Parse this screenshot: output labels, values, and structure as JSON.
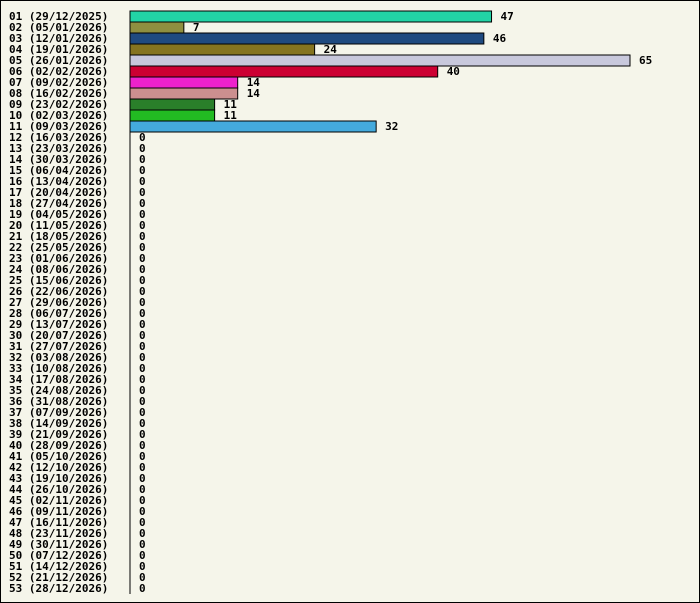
{
  "chart_data": {
    "type": "bar",
    "orientation": "horizontal",
    "categories": [
      "01 (29/12/2025)",
      "02 (05/01/2026)",
      "03 (12/01/2026)",
      "04 (19/01/2026)",
      "05 (26/01/2026)",
      "06 (02/02/2026)",
      "07 (09/02/2026)",
      "08 (16/02/2026)",
      "09 (23/02/2026)",
      "10 (02/03/2026)",
      "11 (09/03/2026)",
      "12 (16/03/2026)",
      "13 (23/03/2026)",
      "14 (30/03/2026)",
      "15 (06/04/2026)",
      "16 (13/04/2026)",
      "17 (20/04/2026)",
      "18 (27/04/2026)",
      "19 (04/05/2026)",
      "20 (11/05/2026)",
      "21 (18/05/2026)",
      "22 (25/05/2026)",
      "23 (01/06/2026)",
      "24 (08/06/2026)",
      "25 (15/06/2026)",
      "26 (22/06/2026)",
      "27 (29/06/2026)",
      "28 (06/07/2026)",
      "29 (13/07/2026)",
      "30 (20/07/2026)",
      "31 (27/07/2026)",
      "32 (03/08/2026)",
      "33 (10/08/2026)",
      "34 (17/08/2026)",
      "35 (24/08/2026)",
      "36 (31/08/2026)",
      "37 (07/09/2026)",
      "38 (14/09/2026)",
      "39 (21/09/2026)",
      "40 (28/09/2026)",
      "41 (05/10/2026)",
      "42 (12/10/2026)",
      "43 (19/10/2026)",
      "44 (26/10/2026)",
      "45 (02/11/2026)",
      "46 (09/11/2026)",
      "47 (16/11/2026)",
      "48 (23/11/2026)",
      "49 (30/11/2026)",
      "50 (07/12/2026)",
      "51 (14/12/2026)",
      "52 (21/12/2026)",
      "53 (28/12/2026)"
    ],
    "values": [
      47,
      7,
      46,
      24,
      65,
      40,
      14,
      14,
      11,
      11,
      32,
      0,
      0,
      0,
      0,
      0,
      0,
      0,
      0,
      0,
      0,
      0,
      0,
      0,
      0,
      0,
      0,
      0,
      0,
      0,
      0,
      0,
      0,
      0,
      0,
      0,
      0,
      0,
      0,
      0,
      0,
      0,
      0,
      0,
      0,
      0,
      0,
      0,
      0,
      0,
      0,
      0,
      0
    ],
    "colors": [
      "#22d3a6",
      "#8f8f40",
      "#1f4a80",
      "#857420",
      "#c8c8dc",
      "#cc0033",
      "#ee22cc",
      "#cc8f8f",
      "#2a7f2a",
      "#22bb22",
      "#44aadd"
    ],
    "xlim": [
      0,
      65
    ],
    "title": "",
    "xlabel": "",
    "ylabel": ""
  }
}
